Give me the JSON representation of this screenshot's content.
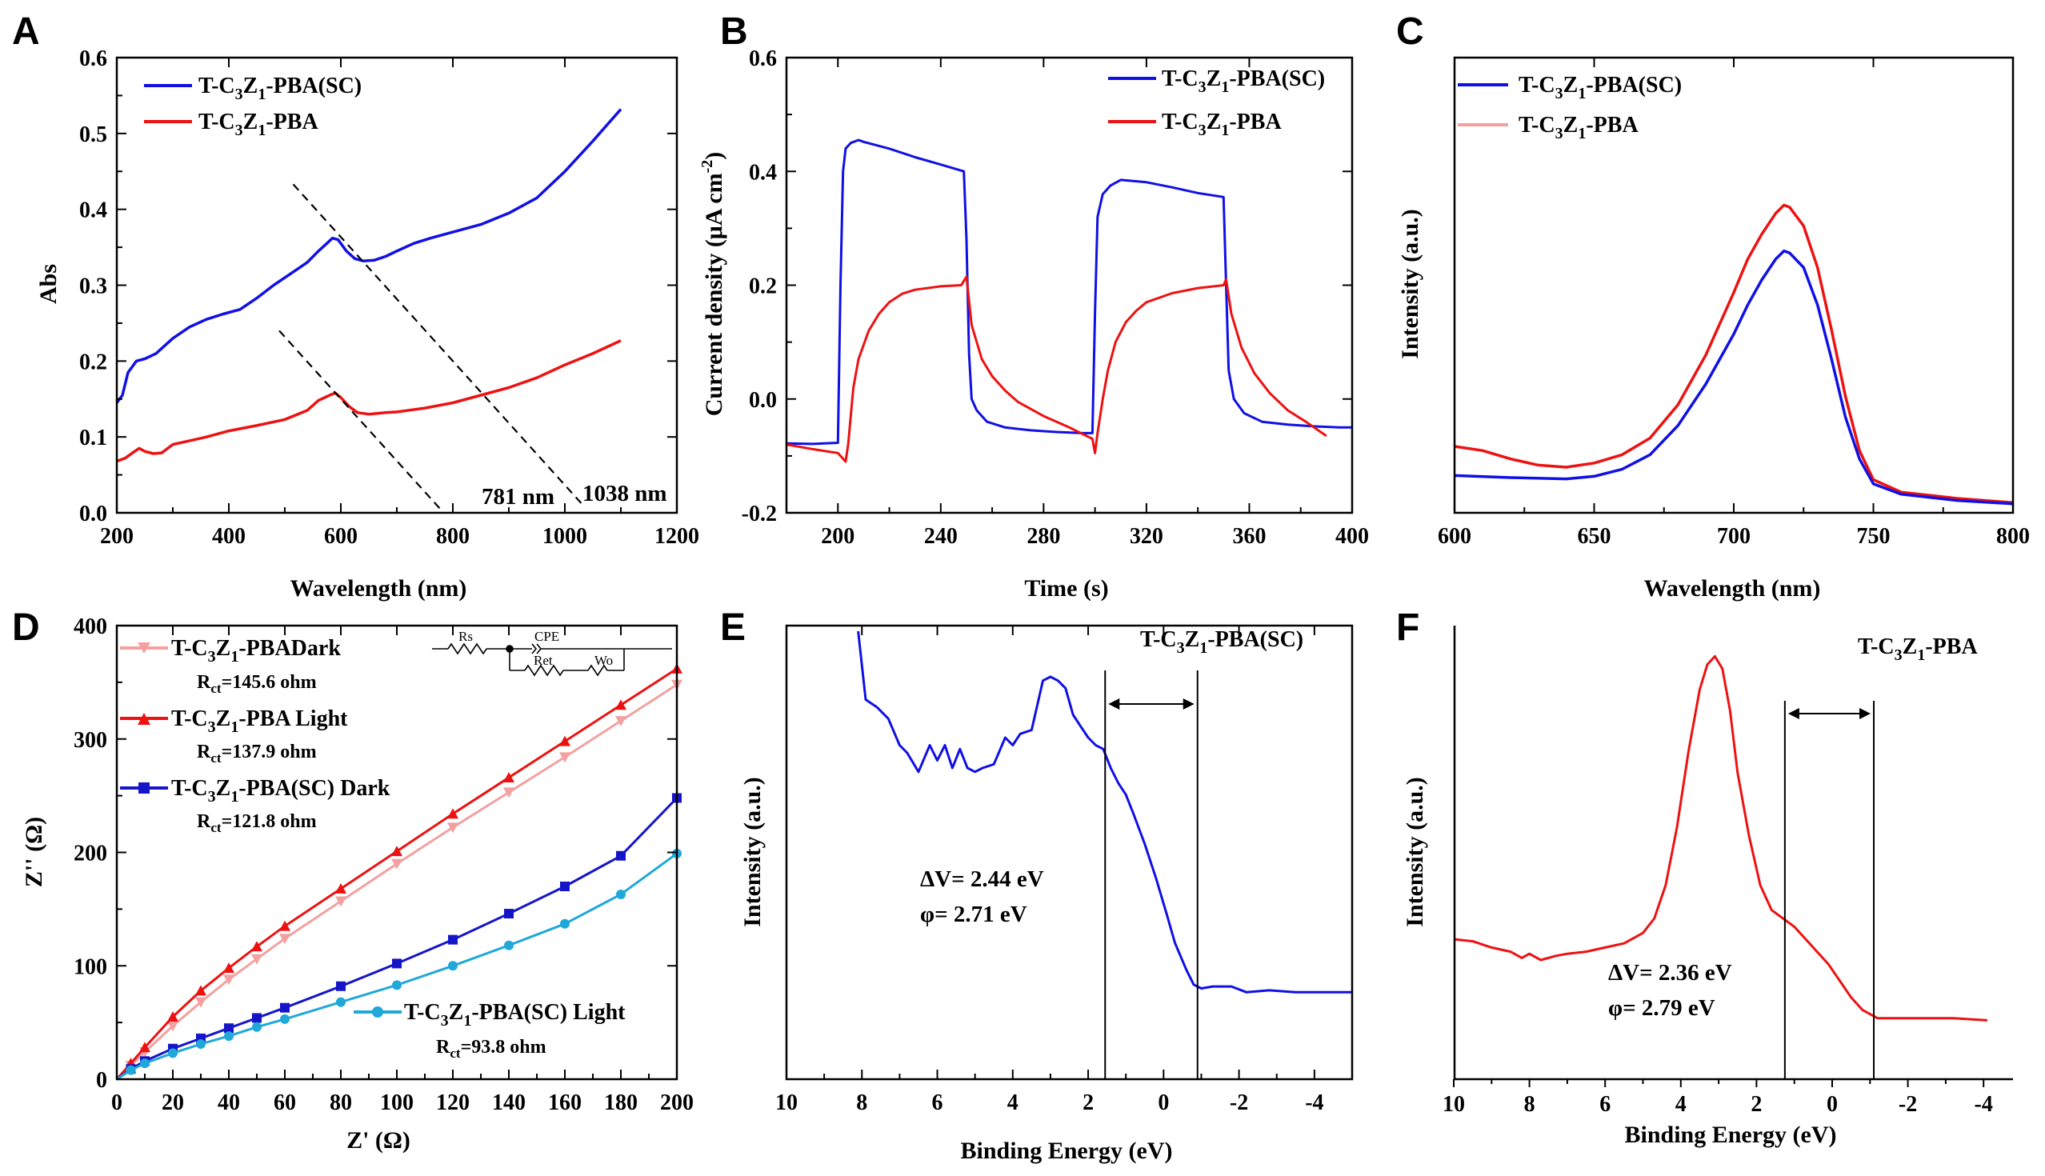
{
  "colors": {
    "blue": "#1010e6",
    "red": "#ee1111",
    "pink": "#f4a0a0",
    "cyan": "#1fa8d8",
    "navy": "#1515c8"
  },
  "chart_data": [
    {
      "panel": "A",
      "type": "line",
      "xlabel": "Wavelength (nm)",
      "ylabel": "Abs",
      "xlim": [
        200,
        1200
      ],
      "ylim": [
        0.0,
        0.6
      ],
      "xticks": [
        "200",
        "400",
        "600",
        "800",
        "1000",
        "1200"
      ],
      "yticks": [
        "0.0",
        "0.1",
        "0.2",
        "0.3",
        "0.4",
        "0.5",
        "0.6"
      ],
      "legend": [
        "T-C3Z1-PBA(SC)",
        "T-C3Z1-PBA"
      ],
      "series": [
        {
          "name": "T-C3Z1-PBA(SC)",
          "color": "blue",
          "x": [
            200,
            210,
            220,
            235,
            250,
            270,
            300,
            330,
            360,
            390,
            420,
            450,
            480,
            510,
            540,
            560,
            575,
            585,
            595,
            610,
            625,
            640,
            660,
            680,
            700,
            730,
            760,
            800,
            850,
            900,
            950,
            1000,
            1050,
            1100
          ],
          "y": [
            0.145,
            0.155,
            0.185,
            0.2,
            0.203,
            0.21,
            0.23,
            0.245,
            0.255,
            0.262,
            0.268,
            0.283,
            0.3,
            0.315,
            0.33,
            0.345,
            0.355,
            0.362,
            0.36,
            0.345,
            0.335,
            0.332,
            0.333,
            0.338,
            0.345,
            0.355,
            0.362,
            0.37,
            0.38,
            0.395,
            0.415,
            0.45,
            0.49,
            0.532
          ]
        },
        {
          "name": "T-C3Z1-PBA",
          "color": "red",
          "x": [
            200,
            215,
            230,
            240,
            250,
            265,
            280,
            300,
            330,
            360,
            400,
            450,
            500,
            540,
            560,
            580,
            590,
            600,
            615,
            630,
            650,
            680,
            700,
            750,
            800,
            850,
            900,
            950,
            1000,
            1050,
            1100
          ],
          "y": [
            0.068,
            0.072,
            0.08,
            0.085,
            0.081,
            0.078,
            0.079,
            0.09,
            0.095,
            0.1,
            0.108,
            0.115,
            0.123,
            0.135,
            0.148,
            0.155,
            0.158,
            0.152,
            0.14,
            0.132,
            0.13,
            0.132,
            0.133,
            0.138,
            0.145,
            0.155,
            0.165,
            0.178,
            0.195,
            0.21,
            0.227
          ]
        }
      ],
      "dashed_lines": [
        {
          "from": [
            515,
            0.433
          ],
          "to": [
            1030,
            0.012
          ]
        },
        {
          "from": [
            490,
            0.24
          ],
          "to": [
            780,
            0.003
          ]
        }
      ],
      "annotations": [
        "781 nm",
        "1038 nm"
      ]
    },
    {
      "panel": "B",
      "type": "line",
      "xlabel": "Time (s)",
      "ylabel": "Current density (μA cm-2)",
      "xlim": [
        180,
        400
      ],
      "ylim": [
        -0.2,
        0.6
      ],
      "xticks": [
        "200",
        "240",
        "280",
        "320",
        "360",
        "400"
      ],
      "yticks": [
        "-0.2",
        "0.0",
        "0.2",
        "0.4",
        "0.6"
      ],
      "legend": [
        "T-C3Z1-PBA(SC)",
        "T-C3Z1-PBA"
      ],
      "series": [
        {
          "name": "T-C3Z1-PBA(SC)",
          "color": "blue",
          "x": [
            180,
            190,
            200,
            201,
            202,
            203,
            205,
            208,
            210,
            220,
            230,
            240,
            249,
            250,
            251,
            252,
            254,
            258,
            265,
            275,
            285,
            295,
            299,
            300,
            301,
            303,
            306,
            310,
            320,
            330,
            340,
            350,
            351,
            352,
            354,
            358,
            365,
            375,
            385,
            395,
            400
          ],
          "y": [
            -0.078,
            -0.079,
            -0.077,
            0.2,
            0.4,
            0.44,
            0.45,
            0.455,
            0.452,
            0.44,
            0.425,
            0.412,
            0.4,
            0.28,
            0.08,
            0.0,
            -0.02,
            -0.04,
            -0.05,
            -0.055,
            -0.058,
            -0.06,
            -0.06,
            0.15,
            0.32,
            0.36,
            0.375,
            0.385,
            0.381,
            0.372,
            0.362,
            0.355,
            0.2,
            0.05,
            0.0,
            -0.025,
            -0.04,
            -0.045,
            -0.048,
            -0.05,
            -0.05
          ]
        },
        {
          "name": "T-C3Z1-PBA",
          "color": "red",
          "x": [
            180,
            190,
            200,
            203,
            204,
            206,
            208,
            212,
            216,
            220,
            225,
            230,
            240,
            248,
            250,
            252,
            256,
            260,
            265,
            270,
            280,
            290,
            299,
            300,
            301,
            303,
            305,
            308,
            312,
            316,
            320,
            330,
            340,
            350,
            351,
            353,
            357,
            362,
            368,
            375,
            382,
            390
          ],
          "y": [
            -0.08,
            -0.088,
            -0.095,
            -0.11,
            -0.08,
            0.02,
            0.07,
            0.12,
            0.15,
            0.17,
            0.185,
            0.192,
            0.198,
            0.2,
            0.215,
            0.13,
            0.07,
            0.04,
            0.015,
            -0.005,
            -0.03,
            -0.05,
            -0.07,
            -0.095,
            -0.06,
            0.0,
            0.05,
            0.1,
            0.135,
            0.155,
            0.17,
            0.186,
            0.195,
            0.2,
            0.21,
            0.15,
            0.09,
            0.045,
            0.01,
            -0.02,
            -0.04,
            -0.065
          ]
        }
      ]
    },
    {
      "panel": "C",
      "type": "line",
      "xlabel": "Wavelength (nm)",
      "ylabel": "Intensity (a.u.)",
      "xlim": [
        600,
        800
      ],
      "xticks": [
        "600",
        "650",
        "700",
        "750",
        "800"
      ],
      "legend": [
        "T-C3Z1-PBA(SC)",
        "T-C3Z1-PBA"
      ],
      "legend_colors": [
        "blue",
        "pink"
      ],
      "series": [
        {
          "name": "T-C3Z1-PBA(SC)",
          "color": "blue",
          "x": [
            600,
            620,
            640,
            650,
            660,
            670,
            680,
            690,
            700,
            705,
            710,
            715,
            718,
            720,
            725,
            730,
            735,
            740,
            745,
            750,
            760,
            780,
            800
          ],
          "y": [
            0.08,
            0.075,
            0.072,
            0.078,
            0.095,
            0.13,
            0.2,
            0.3,
            0.42,
            0.49,
            0.55,
            0.6,
            0.62,
            0.615,
            0.58,
            0.49,
            0.36,
            0.22,
            0.12,
            0.06,
            0.035,
            0.02,
            0.012
          ]
        },
        {
          "name": "T-C3Z1-PBA",
          "color": "red",
          "x": [
            600,
            610,
            620,
            630,
            640,
            650,
            660,
            670,
            680,
            690,
            700,
            705,
            710,
            715,
            718,
            720,
            725,
            730,
            735,
            740,
            745,
            750,
            760,
            780,
            800
          ],
          "y": [
            0.15,
            0.14,
            0.12,
            0.105,
            0.1,
            0.11,
            0.13,
            0.17,
            0.25,
            0.37,
            0.52,
            0.6,
            0.66,
            0.71,
            0.73,
            0.725,
            0.68,
            0.58,
            0.43,
            0.27,
            0.14,
            0.07,
            0.04,
            0.025,
            0.015
          ]
        }
      ]
    },
    {
      "panel": "D",
      "type": "line",
      "xlabel": "Z' (Ω)",
      "ylabel": "Z'' (Ω)",
      "xlim": [
        0,
        200
      ],
      "ylim": [
        0,
        400
      ],
      "xticks": [
        "0",
        "20",
        "40",
        "60",
        "80",
        "100",
        "120",
        "140",
        "160",
        "180",
        "200"
      ],
      "yticks": [
        "0",
        "100",
        "200",
        "300",
        "400"
      ],
      "legend": [
        "T-C3Z1-PBADark",
        "T-C3Z1-PBA Light",
        "T-C3Z1-PBA(SC) Dark",
        "T-C3Z1-PBA(SC) Light"
      ],
      "rct_labels": [
        "Rct=145.6 ohm",
        "Rct=137.9 ohm",
        "Rct=121.8 ohm",
        "Rct=93.8 ohm"
      ],
      "circuit_labels": [
        "Rs",
        "CPE",
        "Ret",
        "Wo"
      ],
      "series": [
        {
          "name": "T-C3Z1-PBADark",
          "color": "pink",
          "marker": "tri-down",
          "x": [
            0,
            5,
            10,
            20,
            30,
            40,
            50,
            60,
            80,
            100,
            120,
            140,
            160,
            180,
            200
          ],
          "y": [
            0,
            12,
            24,
            47,
            68,
            88,
            106,
            124,
            157,
            190,
            222,
            253,
            284,
            316,
            348
          ]
        },
        {
          "name": "T-C3Z1-PBA Light",
          "color": "red",
          "marker": "tri-up",
          "x": [
            0,
            5,
            10,
            20,
            30,
            40,
            50,
            60,
            80,
            100,
            120,
            140,
            160,
            180,
            200
          ],
          "y": [
            0,
            14,
            28,
            55,
            78,
            98,
            117,
            135,
            168,
            201,
            234,
            266,
            298,
            330,
            362
          ]
        },
        {
          "name": "T-C3Z1-PBA(SC) Dark",
          "color": "navy",
          "marker": "square",
          "x": [
            0,
            5,
            10,
            20,
            30,
            40,
            50,
            60,
            80,
            100,
            120,
            140,
            160,
            180,
            200
          ],
          "y": [
            0,
            9,
            16,
            27,
            36,
            45,
            54,
            63,
            82,
            102,
            123,
            146,
            170,
            197,
            248
          ]
        },
        {
          "name": "T-C3Z1-PBA(SC) Light",
          "color": "cyan",
          "marker": "circle",
          "x": [
            0,
            5,
            10,
            20,
            30,
            40,
            50,
            60,
            80,
            100,
            120,
            140,
            160,
            180,
            200
          ],
          "y": [
            0,
            8,
            14,
            23,
            31,
            38,
            46,
            53,
            68,
            83,
            100,
            118,
            137,
            163,
            199
          ]
        }
      ]
    },
    {
      "panel": "E",
      "type": "line",
      "title": "T-C3Z1-PBA(SC)",
      "xlabel": "Binding Energy (eV)",
      "ylabel": "Intensity (a.u.)",
      "xlim": [
        10,
        -5
      ],
      "xticks": [
        "10",
        "8",
        "6",
        "4",
        "2",
        "0",
        "-2",
        "-4"
      ],
      "annotations": [
        "ΔV= 2.44 eV",
        "φ= 2.71 eV"
      ],
      "vlines": [
        1.55,
        -0.9
      ],
      "series": [
        {
          "name": "T-C3Z1-PBA(SC)",
          "color": "blue",
          "x": [
            8.1,
            7.9,
            7.6,
            7.3,
            7.0,
            6.8,
            6.5,
            6.2,
            6.0,
            5.8,
            5.6,
            5.4,
            5.2,
            5.0,
            4.8,
            4.5,
            4.2,
            4.0,
            3.8,
            3.5,
            3.2,
            3.0,
            2.8,
            2.6,
            2.4,
            2.2,
            2.0,
            1.8,
            1.6,
            1.4,
            1.2,
            1.0,
            0.8,
            0.5,
            0.2,
            -0.1,
            -0.3,
            -0.6,
            -0.8,
            -1.0,
            -1.3,
            -1.8,
            -2.2,
            -2.8,
            -3.5,
            -4.2,
            -5.0
          ],
          "y": [
            1.0,
            0.82,
            0.8,
            0.77,
            0.7,
            0.68,
            0.63,
            0.7,
            0.66,
            0.7,
            0.64,
            0.69,
            0.64,
            0.63,
            0.64,
            0.65,
            0.72,
            0.7,
            0.73,
            0.74,
            0.87,
            0.88,
            0.87,
            0.85,
            0.78,
            0.75,
            0.72,
            0.7,
            0.69,
            0.64,
            0.6,
            0.57,
            0.52,
            0.44,
            0.35,
            0.25,
            0.18,
            0.11,
            0.07,
            0.06,
            0.065,
            0.065,
            0.05,
            0.055,
            0.05,
            0.05,
            0.05
          ]
        }
      ]
    },
    {
      "panel": "F",
      "type": "line",
      "title": "T-C3Z1-PBA",
      "xlabel": "Binding Energy (eV)",
      "ylabel": "Intensity (a.u.)",
      "xlim": [
        10,
        -5
      ],
      "xticks": [
        "10",
        "8",
        "6",
        "4",
        "2",
        "0",
        "-2",
        "-4"
      ],
      "annotations": [
        "ΔV= 2.36 eV",
        "φ= 2.79 eV"
      ],
      "vlines": [
        1.25,
        -1.1
      ],
      "series": [
        {
          "name": "T-C3Z1-PBA",
          "color": "red",
          "x": [
            10,
            9.5,
            9.0,
            8.5,
            8.2,
            8.0,
            7.7,
            7.3,
            7.0,
            6.5,
            6.0,
            5.5,
            5.0,
            4.7,
            4.4,
            4.1,
            3.8,
            3.5,
            3.3,
            3.1,
            2.9,
            2.7,
            2.5,
            2.2,
            1.9,
            1.6,
            1.3,
            1.0,
            0.7,
            0.4,
            0.1,
            -0.2,
            -0.5,
            -0.8,
            -1.2,
            -1.8,
            -2.5,
            -3.2,
            -4.1
          ],
          "y": [
            0.25,
            0.245,
            0.23,
            0.22,
            0.205,
            0.215,
            0.2,
            0.21,
            0.215,
            0.22,
            0.23,
            0.24,
            0.265,
            0.3,
            0.38,
            0.52,
            0.7,
            0.85,
            0.91,
            0.93,
            0.9,
            0.8,
            0.65,
            0.5,
            0.38,
            0.32,
            0.3,
            0.28,
            0.25,
            0.22,
            0.19,
            0.15,
            0.11,
            0.08,
            0.06,
            0.06,
            0.06,
            0.06,
            0.055
          ]
        }
      ]
    }
  ]
}
